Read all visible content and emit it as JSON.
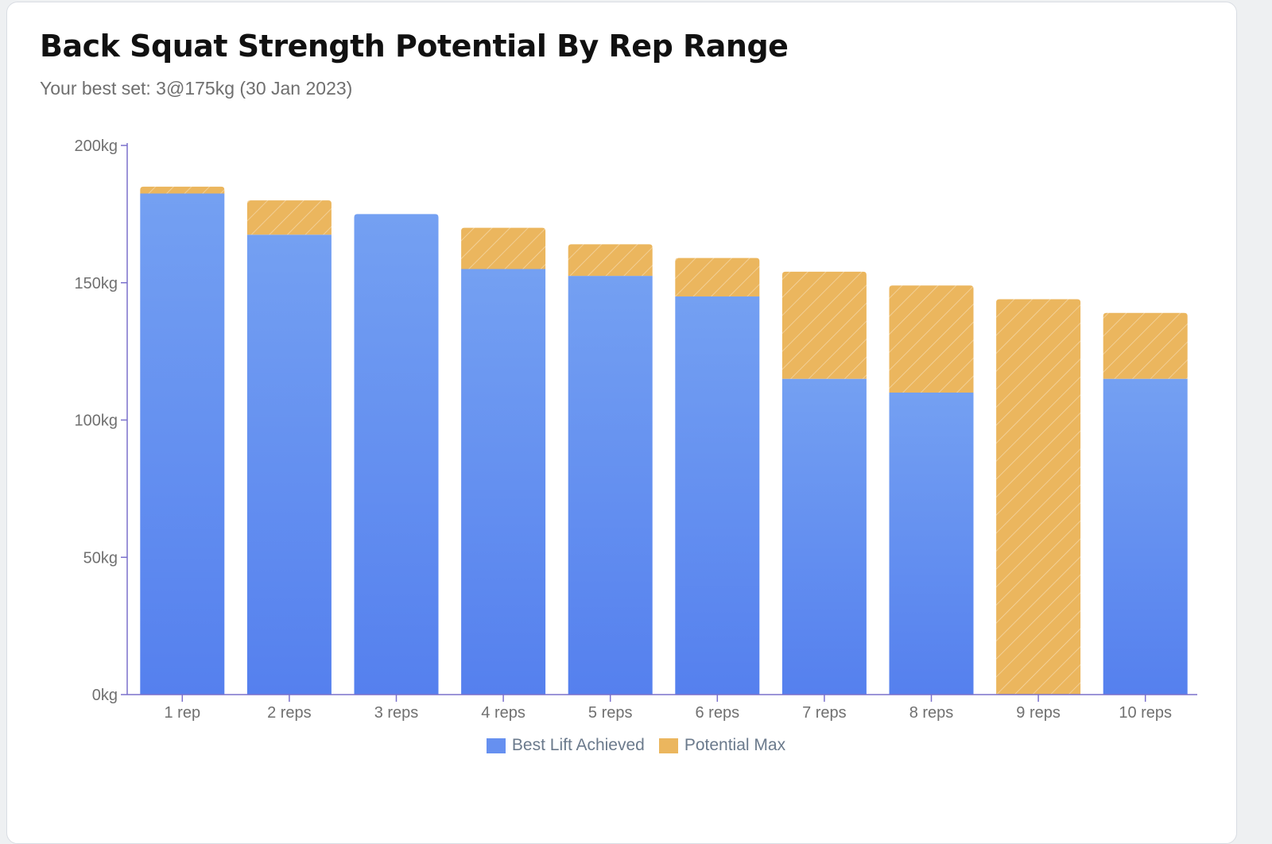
{
  "title": "Back Squat Strength Potential By Rep Range",
  "subtitle": "Your best set: 3@175kg (30 Jan 2023)",
  "colors": {
    "best_top": "#74a0f2",
    "best_bottom": "#5580ee",
    "potential": "#ebb65e",
    "axis": "#7b71cc"
  },
  "legend": [
    {
      "label": "Best Lift Achieved",
      "color": "#6690f0"
    },
    {
      "label": "Potential Max",
      "color": "#ebb65e"
    }
  ],
  "chart_data": {
    "type": "bar",
    "stacked": true,
    "title": "Back Squat Strength Potential By Rep Range",
    "subtitle": "Your best set: 3@175kg (30 Jan 2023)",
    "categories": [
      "1 rep",
      "2 reps",
      "3 reps",
      "4 reps",
      "5 reps",
      "6 reps",
      "7 reps",
      "8 reps",
      "9 reps",
      "10 reps"
    ],
    "yticks": [
      "0kg",
      "50kg",
      "100kg",
      "150kg",
      "200kg"
    ],
    "ylim": [
      0,
      200
    ],
    "series": [
      {
        "name": "Best Lift Achieved",
        "values": [
          182.5,
          167.5,
          175,
          155,
          152.5,
          145,
          115,
          110,
          0,
          115
        ]
      },
      {
        "name": "Potential Max",
        "values": [
          2.5,
          12.5,
          0,
          15,
          11.5,
          14,
          39,
          39,
          144,
          24
        ]
      }
    ],
    "legend_position": "bottom"
  }
}
